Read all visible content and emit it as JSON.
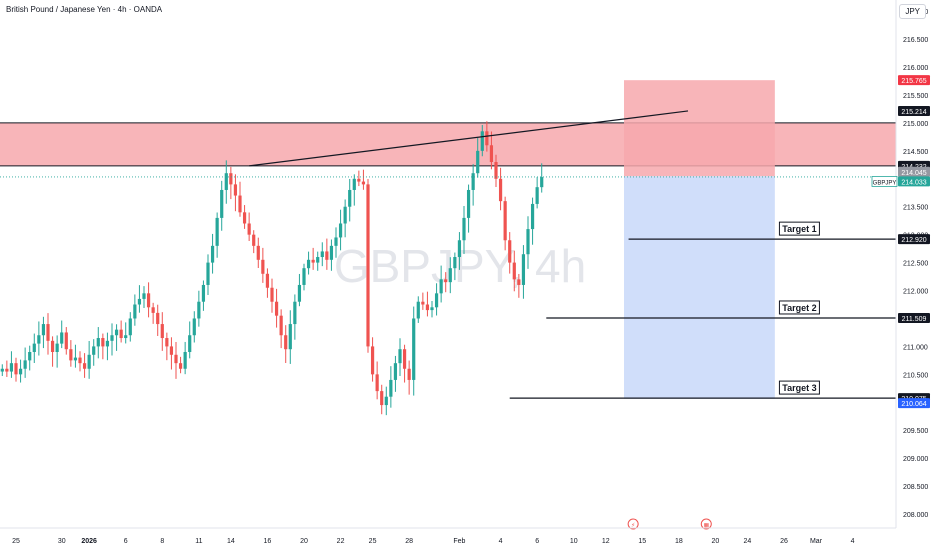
{
  "header": {
    "symbol_line": "British Pound / Japanese Yen · 4h · OANDA",
    "currency": "JPY"
  },
  "watermark": "GBPJPY, 4h",
  "colors": {
    "up": "#26a69a",
    "down": "#ef5350",
    "zone_fill": "#f7a8ad",
    "stop_fill": "#f7a8ad",
    "target_fill": "#cddcfa",
    "current_line": "#26a69a"
  },
  "chart_data": {
    "type": "candlestick",
    "ylim": [
      207.75,
      217.2
    ],
    "y_ticks": [
      "217.000",
      "216.500",
      "216.000",
      "215.500",
      "215.000",
      "214.500",
      "214.000",
      "213.500",
      "213.000",
      "212.500",
      "212.000",
      "211.500",
      "211.000",
      "210.500",
      "210.000",
      "209.500",
      "209.000",
      "208.500",
      "208.000"
    ],
    "x_ticks": [
      {
        "label": "25",
        "bar": 3
      },
      {
        "label": "30",
        "bar": 13
      },
      {
        "label": "2026",
        "bar": 19
      },
      {
        "label": "6",
        "bar": 27
      },
      {
        "label": "8",
        "bar": 35
      },
      {
        "label": "11",
        "bar": 43
      },
      {
        "label": "14",
        "bar": 50
      },
      {
        "label": "16",
        "bar": 58
      },
      {
        "label": "20",
        "bar": 66
      },
      {
        "label": "22",
        "bar": 74
      },
      {
        "label": "25",
        "bar": 81
      },
      {
        "label": "28",
        "bar": 89
      },
      {
        "label": "Feb",
        "bar": 100
      },
      {
        "label": "4",
        "bar": 109
      },
      {
        "label": "6",
        "bar": 117
      },
      {
        "label": "10",
        "bar": 125
      },
      {
        "label": "12",
        "bar": 132
      },
      {
        "label": "15",
        "bar": 140
      },
      {
        "label": "18",
        "bar": 148
      },
      {
        "label": "20",
        "bar": 156
      },
      {
        "label": "24",
        "bar": 163
      },
      {
        "label": "26",
        "bar": 171
      },
      {
        "label": "Mar",
        "bar": 178
      },
      {
        "label": "4",
        "bar": 186
      }
    ],
    "total_bars": 196,
    "closes": [
      210.6,
      210.55,
      210.7,
      210.5,
      210.6,
      210.75,
      210.9,
      211.05,
      211.2,
      211.4,
      211.1,
      210.9,
      211.05,
      211.25,
      210.95,
      210.75,
      210.8,
      210.7,
      210.6,
      210.85,
      211.0,
      211.15,
      211.0,
      211.1,
      211.2,
      211.3,
      211.15,
      211.2,
      211.5,
      211.75,
      211.85,
      211.95,
      211.7,
      211.6,
      211.4,
      211.15,
      211.0,
      210.85,
      210.7,
      210.6,
      210.9,
      211.2,
      211.5,
      211.8,
      212.1,
      212.5,
      212.8,
      213.3,
      213.8,
      214.1,
      213.9,
      213.7,
      213.4,
      213.2,
      213.0,
      212.8,
      212.55,
      212.3,
      212.05,
      211.8,
      211.55,
      211.2,
      210.95,
      211.4,
      211.8,
      212.1,
      212.4,
      212.55,
      212.5,
      212.6,
      212.7,
      212.55,
      212.8,
      212.95,
      213.2,
      213.5,
      213.8,
      214.0,
      213.95,
      213.9,
      211.0,
      210.5,
      210.2,
      209.95,
      210.1,
      210.4,
      210.7,
      210.95,
      210.6,
      210.4,
      211.5,
      211.8,
      211.75,
      211.65,
      211.7,
      211.95,
      212.2,
      212.15,
      212.4,
      212.6,
      212.9,
      213.3,
      213.8,
      214.1,
      214.5,
      214.85,
      214.6,
      214.3,
      214.0,
      213.6,
      212.9,
      212.5,
      212.2,
      212.1,
      212.65,
      213.1,
      213.55,
      213.85,
      214.03
    ],
    "targets": [
      {
        "label": "Target 1",
        "price": "212.920",
        "value": 212.92
      },
      {
        "label": "Target 2",
        "price": "211.509",
        "value": 211.509
      },
      {
        "label": "Target 3",
        "price": "210.075",
        "value": 210.075
      }
    ],
    "resistance_zone": {
      "top": 215.0,
      "bottom": 214.232
    },
    "resistance_zone_label": "214.232",
    "trendline": {
      "from_bar": 54,
      "from_price": 214.232,
      "to_bar": 150,
      "to_price": 215.214
    },
    "position": {
      "from_bar": 136,
      "to_bar": 169,
      "stop": 215.765,
      "entry": 214.045,
      "target": 210.064,
      "stop_label": "215.765",
      "entry_label": "214.045",
      "target_label": "210.064"
    },
    "trendline_label": "215.214",
    "current": {
      "symbol": "GBPJPY",
      "price": "214.033",
      "value": 214.033
    },
    "event_icons": [
      {
        "bar": 138,
        "type": "flash"
      },
      {
        "bar": 154,
        "type": "calendar"
      }
    ]
  }
}
